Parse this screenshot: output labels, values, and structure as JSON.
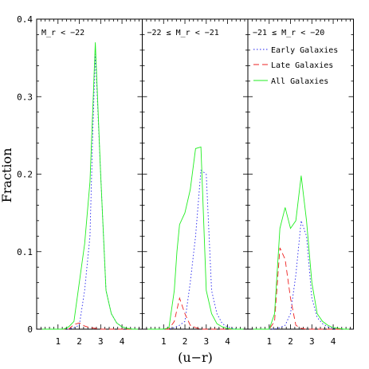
{
  "figure": {
    "ylabel": "Fraction",
    "xlabel": "(u−r)"
  },
  "legend": [
    {
      "label": "Early Galaxies",
      "color": "#2222ee",
      "style": "dotted"
    },
    {
      "label": "Late Galaxies",
      "color": "#ee2222",
      "style": "dashed"
    },
    {
      "label": "All Galaxies",
      "color": "#22ee22",
      "style": "solid"
    }
  ],
  "chart_data": [
    {
      "type": "line",
      "title": "M_r < −22",
      "xlim": [
        0.0,
        4.95
      ],
      "ylim": [
        0,
        0.4
      ],
      "yticks": [
        0,
        0.1,
        0.2,
        0.3,
        0.4
      ],
      "xticks": [
        1,
        2,
        3,
        4
      ],
      "series": [
        {
          "name": "Early Galaxies",
          "color": "#2222ee",
          "style": "dotted",
          "x": [
            0.25,
            0.5,
            0.75,
            1.0,
            1.25,
            1.5,
            1.75,
            2.0,
            2.25,
            2.5,
            2.625,
            2.75,
            3.0,
            3.25,
            3.5,
            3.75,
            4.0,
            4.25,
            4.5,
            4.75
          ],
          "y": [
            0,
            0,
            0,
            0,
            0,
            0,
            0.002,
            0.005,
            0.05,
            0.12,
            0.25,
            0.355,
            0.2,
            0.05,
            0.02,
            0.008,
            0.003,
            0.001,
            0,
            0
          ]
        },
        {
          "name": "Late Galaxies",
          "color": "#ee2222",
          "style": "dashed",
          "x": [
            0.25,
            0.5,
            0.75,
            1.0,
            1.25,
            1.5,
            1.75,
            2.0,
            2.25,
            2.5,
            2.75,
            3.0,
            3.25,
            3.5,
            3.75,
            4.0,
            4.25,
            4.5,
            4.75
          ],
          "y": [
            0,
            0,
            0,
            0,
            0,
            0,
            0.006,
            0.008,
            0.004,
            0.002,
            0.001,
            0,
            0,
            0,
            0,
            0,
            0,
            0,
            0
          ]
        },
        {
          "name": "All Galaxies",
          "color": "#22ee22",
          "style": "solid",
          "x": [
            0.25,
            0.5,
            0.75,
            1.0,
            1.25,
            1.5,
            1.75,
            2.0,
            2.25,
            2.5,
            2.625,
            2.75,
            3.0,
            3.25,
            3.5,
            3.75,
            4.0,
            4.25,
            4.5,
            4.75
          ],
          "y": [
            0,
            0,
            0,
            0,
            0,
            0.003,
            0.01,
            0.06,
            0.11,
            0.19,
            0.28,
            0.37,
            0.2,
            0.05,
            0.02,
            0.008,
            0.003,
            0.001,
            0,
            0
          ]
        }
      ]
    },
    {
      "type": "line",
      "title": "−22 ≤ M_r < −21",
      "xlim": [
        0.0,
        4.95
      ],
      "ylim": [
        0,
        0.4
      ],
      "xticks": [
        1,
        2,
        3,
        4
      ],
      "series": [
        {
          "name": "Early Galaxies",
          "color": "#2222ee",
          "style": "dotted",
          "x": [
            0.25,
            0.5,
            0.75,
            1.0,
            1.25,
            1.5,
            1.75,
            2.0,
            2.25,
            2.5,
            2.75,
            3.0,
            3.25,
            3.5,
            3.75,
            4.0,
            4.25,
            4.5,
            4.75
          ],
          "y": [
            0,
            0,
            0,
            0,
            0,
            0.002,
            0.005,
            0.01,
            0.06,
            0.12,
            0.205,
            0.2,
            0.05,
            0.02,
            0.007,
            0.003,
            0.001,
            0,
            0
          ]
        },
        {
          "name": "Late Galaxies",
          "color": "#ee2222",
          "style": "dashed",
          "x": [
            0.25,
            0.5,
            0.75,
            1.0,
            1.25,
            1.5,
            1.75,
            2.0,
            2.25,
            2.5,
            2.75,
            3.0,
            3.25,
            3.5,
            3.75,
            4.0,
            4.25,
            4.5,
            4.75
          ],
          "y": [
            0,
            0,
            0,
            0,
            0,
            0.01,
            0.04,
            0.02,
            0.005,
            0.002,
            0,
            0,
            0,
            0,
            0,
            0,
            0,
            0,
            0
          ]
        },
        {
          "name": "All Galaxies",
          "color": "#22ee22",
          "style": "solid",
          "x": [
            0.25,
            0.5,
            0.75,
            1.0,
            1.25,
            1.5,
            1.625,
            1.75,
            2.0,
            2.25,
            2.5,
            2.75,
            3.0,
            3.25,
            3.5,
            3.75,
            4.0,
            4.25,
            4.5,
            4.75
          ],
          "y": [
            0,
            0,
            0,
            0,
            0.002,
            0.05,
            0.1,
            0.135,
            0.15,
            0.18,
            0.233,
            0.235,
            0.05,
            0.02,
            0.007,
            0.003,
            0.001,
            0,
            0,
            0
          ]
        }
      ]
    },
    {
      "type": "line",
      "title": "−21 ≤ M_r < −20",
      "xlim": [
        0.0,
        4.95
      ],
      "ylim": [
        0,
        0.4
      ],
      "xticks": [
        1,
        2,
        3,
        4
      ],
      "series": [
        {
          "name": "Early Galaxies",
          "color": "#2222ee",
          "style": "dotted",
          "x": [
            0.25,
            0.5,
            0.75,
            1.0,
            1.25,
            1.5,
            1.75,
            2.0,
            2.25,
            2.5,
            2.75,
            3.0,
            3.25,
            3.5,
            3.75,
            4.0,
            4.25,
            4.5,
            4.75
          ],
          "y": [
            0,
            0,
            0,
            0,
            0,
            0.002,
            0.005,
            0.02,
            0.07,
            0.14,
            0.12,
            0.04,
            0.015,
            0.007,
            0.003,
            0.001,
            0,
            0,
            0
          ]
        },
        {
          "name": "Late Galaxies",
          "color": "#ee2222",
          "style": "dashed",
          "x": [
            0.25,
            0.5,
            0.75,
            1.0,
            1.25,
            1.5,
            1.75,
            2.0,
            2.25,
            2.5,
            2.75,
            3.0,
            3.25,
            3.5,
            3.75,
            4.0,
            4.25,
            4.5,
            4.75
          ],
          "y": [
            0,
            0,
            0,
            0,
            0.01,
            0.105,
            0.09,
            0.04,
            0.005,
            0.001,
            0,
            0,
            0,
            0,
            0,
            0,
            0,
            0,
            0
          ]
        },
        {
          "name": "All Galaxies",
          "color": "#22ee22",
          "style": "solid",
          "x": [
            0.25,
            0.5,
            0.75,
            1.0,
            1.25,
            1.5,
            1.75,
            2.0,
            2.25,
            2.5,
            2.75,
            3.0,
            3.25,
            3.5,
            3.75,
            4.0,
            4.25,
            4.5,
            4.75
          ],
          "y": [
            0,
            0,
            0,
            0,
            0.02,
            0.13,
            0.157,
            0.13,
            0.14,
            0.198,
            0.14,
            0.06,
            0.02,
            0.01,
            0.005,
            0.002,
            0.001,
            0,
            0
          ]
        }
      ]
    }
  ]
}
